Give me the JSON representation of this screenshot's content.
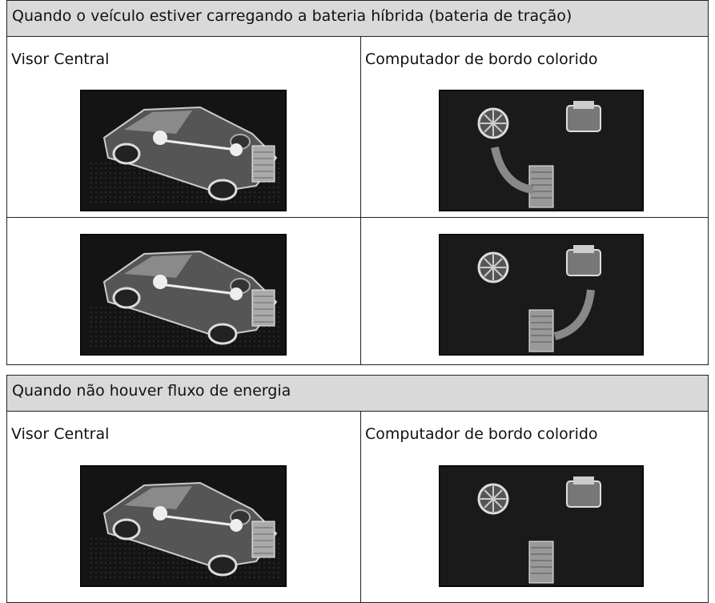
{
  "sections": [
    {
      "title": "Quando o veículo estiver carregando a bateria híbrida (bateria de tração)",
      "columns": [
        "Visor Central",
        "Computador de bordo colorido"
      ]
    },
    {
      "title": "Quando não houver fluxo de energia",
      "columns": [
        "Visor Central",
        "Computador de bordo colorido"
      ]
    }
  ]
}
